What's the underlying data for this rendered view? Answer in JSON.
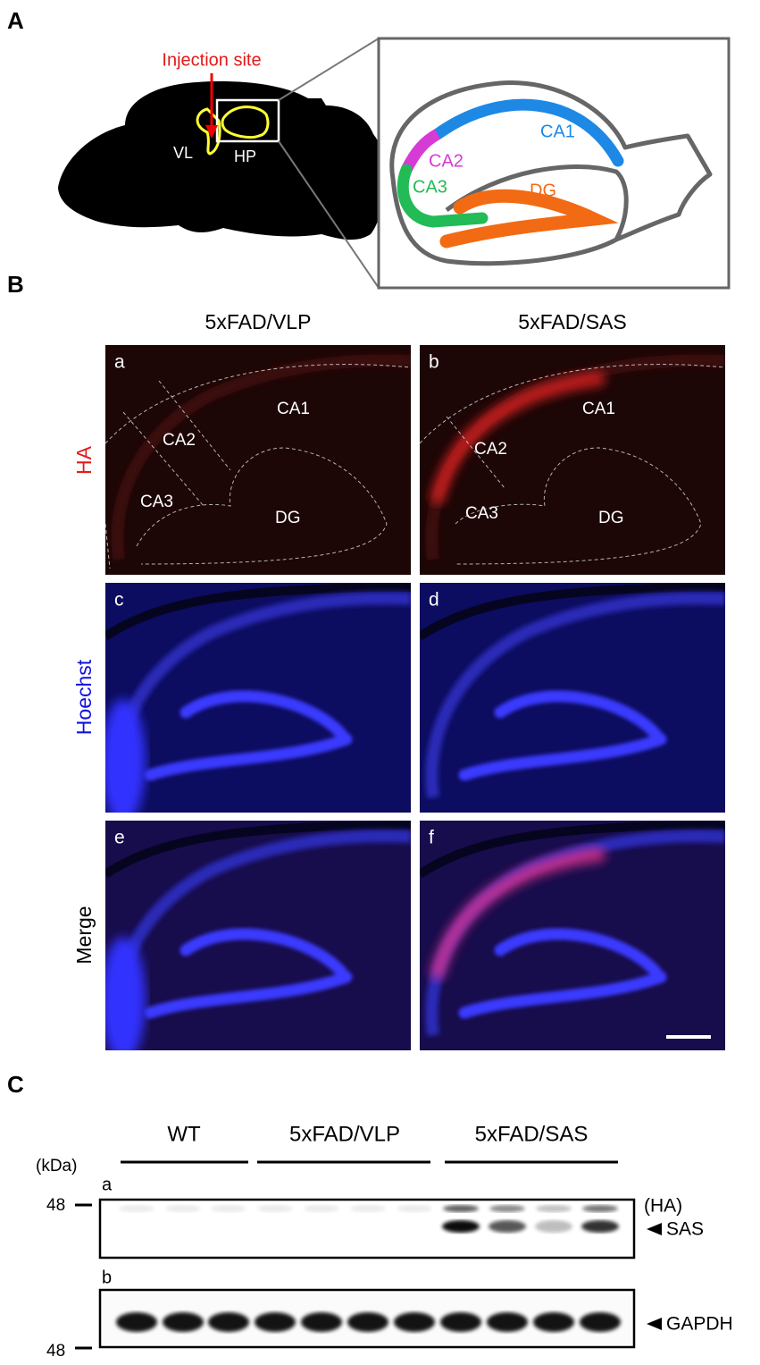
{
  "panel_a": {
    "label": "A",
    "injection": "Injection site",
    "vl": "VL",
    "hp": "HP",
    "regions": [
      "CA1",
      "CA2",
      "CA3",
      "DG"
    ]
  },
  "panel_b": {
    "label": "B",
    "columns": [
      "5xFAD/VLP",
      "5xFAD/SAS"
    ],
    "rows": [
      "HA",
      "Hoechst",
      "Merge"
    ],
    "subpanels": [
      "a",
      "b",
      "c",
      "d",
      "e",
      "f"
    ],
    "regions": [
      "CA1",
      "CA2",
      "CA3",
      "DG"
    ]
  },
  "panel_c": {
    "label": "C",
    "groups": [
      "WT",
      "5xFAD/VLP",
      "5xFAD/SAS"
    ],
    "unit": "(kDa)",
    "blots": [
      "a",
      "b"
    ],
    "markers": [
      "48",
      "48"
    ],
    "tag": "(HA)",
    "targets": [
      "SAS",
      "GAPDH"
    ]
  }
}
